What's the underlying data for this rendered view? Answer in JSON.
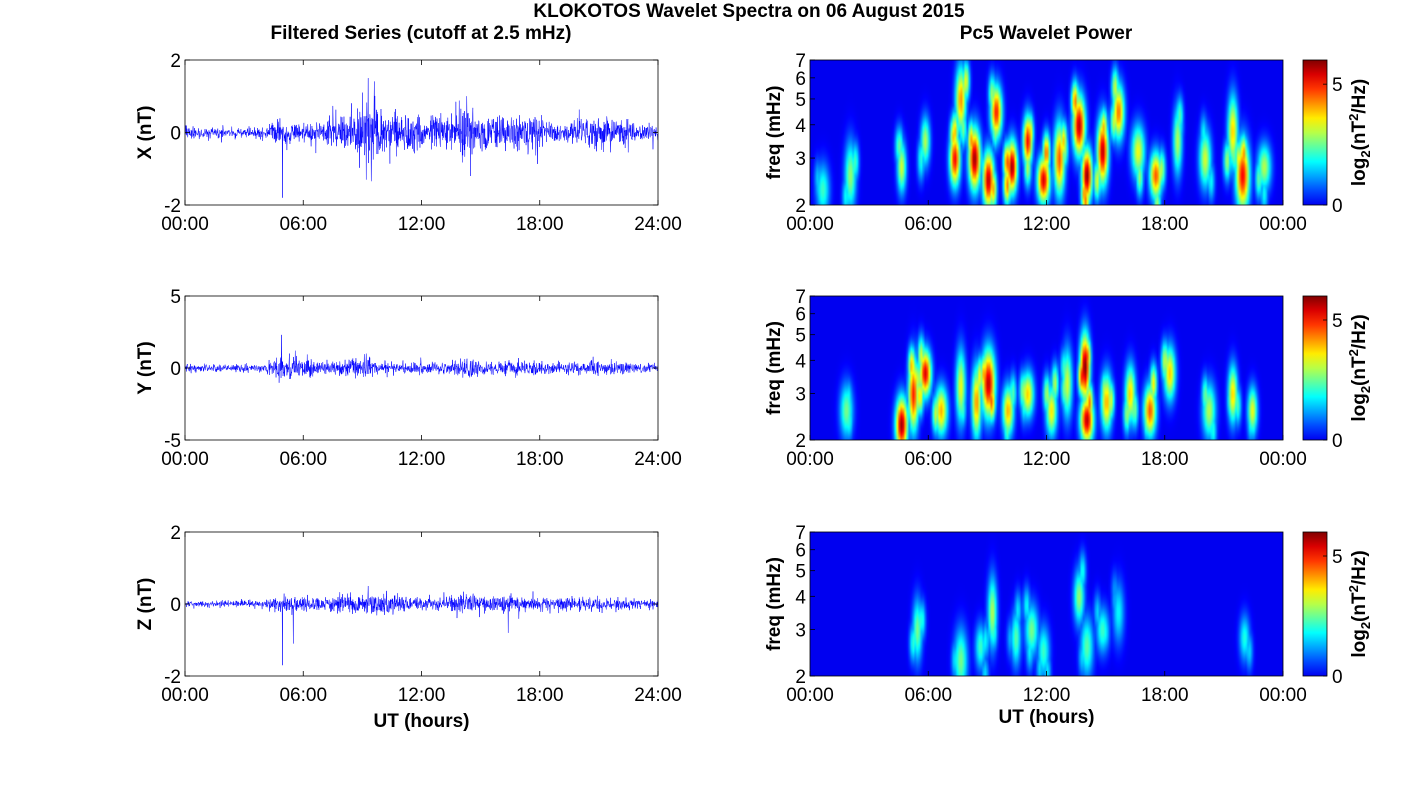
{
  "figure": {
    "title": "KLOKOTOS Wavelet Spectra on 06 August 2015",
    "left_column_title": "Filtered Series (cutoff at 2.5 mHz)",
    "right_column_title": "Pc5 Wavelet Power",
    "time_xlabel": "UT (hours)",
    "spectra_ylabel": "freq (mHz)",
    "colorbar_label": "log2(nT^2/Hz)"
  },
  "chart_data": [
    {
      "type": "line",
      "panel": "X-series",
      "ylabel": "X (nT)",
      "xlabel": "",
      "xticks": [
        "00:00",
        "06:00",
        "12:00",
        "18:00",
        "24:00"
      ],
      "yticks": [
        "-2",
        "0",
        "2"
      ],
      "xlim_hours": [
        0,
        24
      ],
      "ylim": [
        -2,
        2
      ],
      "color": "#0000ff",
      "envelope": {
        "x_hours": [
          0,
          2,
          4,
          4.8,
          5.5,
          7,
          8,
          9,
          9.5,
          10,
          11,
          12,
          13,
          14,
          15,
          16,
          17,
          18,
          19,
          20,
          21,
          22,
          23,
          24
        ],
        "amplitude_nT": [
          0.2,
          0.15,
          0.18,
          0.4,
          0.3,
          0.35,
          0.5,
          0.8,
          1.2,
          0.7,
          0.6,
          0.5,
          0.55,
          0.8,
          0.6,
          0.5,
          0.55,
          0.45,
          0.3,
          0.4,
          0.5,
          0.45,
          0.3,
          0.2
        ]
      },
      "notable_extremes": [
        {
          "x_hours": 4.95,
          "value_nT": -1.8
        },
        {
          "x_hours": 9.3,
          "value_nT": 1.5
        },
        {
          "x_hours": 9.2,
          "value_nT": -1.3
        },
        {
          "x_hours": 14.3,
          "value_nT": 1.0
        },
        {
          "x_hours": 14.5,
          "value_nT": -1.2
        }
      ]
    },
    {
      "type": "heatmap",
      "panel": "X-spectrum",
      "ylabel": "freq (mHz)",
      "xlabel": "",
      "xticks": [
        "00:00",
        "06:00",
        "12:00",
        "18:00",
        "00:00"
      ],
      "yticks": [
        "2",
        "3",
        "4",
        "5",
        "6",
        "7"
      ],
      "ylim_mHz": [
        2,
        7
      ],
      "yscale": "log",
      "colormap": "jet",
      "colorbar_ticks": [
        "0",
        "5"
      ],
      "clim": [
        0,
        6
      ],
      "blobs": [
        {
          "t_hours": 0.6,
          "f_mHz": 2.3,
          "power": 2.2
        },
        {
          "t_hours": 2.0,
          "f_mHz": 2.6,
          "power": 2.8
        },
        {
          "t_hours": 4.6,
          "f_mHz": 2.8,
          "power": 3.2
        },
        {
          "t_hours": 5.8,
          "f_mHz": 3.5,
          "power": 3.0
        },
        {
          "t_hours": 7.3,
          "f_mHz": 3.0,
          "power": 5.2
        },
        {
          "t_hours": 7.6,
          "f_mHz": 5.0,
          "power": 4.2
        },
        {
          "t_hours": 8.3,
          "f_mHz": 3.0,
          "power": 5.8
        },
        {
          "t_hours": 9.0,
          "f_mHz": 2.5,
          "power": 5.6
        },
        {
          "t_hours": 9.4,
          "f_mHz": 4.5,
          "power": 5.0
        },
        {
          "t_hours": 10.2,
          "f_mHz": 2.8,
          "power": 5.8
        },
        {
          "t_hours": 11.0,
          "f_mHz": 3.5,
          "power": 5.2
        },
        {
          "t_hours": 11.8,
          "f_mHz": 2.5,
          "power": 5.4
        },
        {
          "t_hours": 12.6,
          "f_mHz": 3.0,
          "power": 4.6
        },
        {
          "t_hours": 13.6,
          "f_mHz": 4.0,
          "power": 5.6
        },
        {
          "t_hours": 14.0,
          "f_mHz": 2.6,
          "power": 5.9
        },
        {
          "t_hours": 14.8,
          "f_mHz": 3.2,
          "power": 5.6
        },
        {
          "t_hours": 15.6,
          "f_mHz": 4.5,
          "power": 4.4
        },
        {
          "t_hours": 16.6,
          "f_mHz": 3.2,
          "power": 3.4
        },
        {
          "t_hours": 17.5,
          "f_mHz": 2.6,
          "power": 4.6
        },
        {
          "t_hours": 18.6,
          "f_mHz": 3.5,
          "power": 3.0
        },
        {
          "t_hours": 20.0,
          "f_mHz": 3.0,
          "power": 3.2
        },
        {
          "t_hours": 21.4,
          "f_mHz": 3.8,
          "power": 3.8
        },
        {
          "t_hours": 21.9,
          "f_mHz": 2.6,
          "power": 5.2
        },
        {
          "t_hours": 23.0,
          "f_mHz": 2.8,
          "power": 3.0
        }
      ]
    },
    {
      "type": "line",
      "panel": "Y-series",
      "ylabel": "Y (nT)",
      "xlabel": "",
      "xticks": [
        "00:00",
        "06:00",
        "12:00",
        "18:00",
        "24:00"
      ],
      "yticks": [
        "-5",
        "0",
        "5"
      ],
      "xlim_hours": [
        0,
        24
      ],
      "ylim": [
        -5,
        5
      ],
      "color": "#0000ff",
      "envelope": {
        "x_hours": [
          0,
          2,
          4,
          4.8,
          5.5,
          7,
          8,
          9,
          10,
          11,
          12,
          13,
          14,
          14.5,
          15,
          16,
          17,
          18,
          19,
          20,
          21,
          22,
          23,
          24
        ],
        "amplitude_nT": [
          0.3,
          0.25,
          0.3,
          1.2,
          0.8,
          0.5,
          0.5,
          0.8,
          0.5,
          0.4,
          0.4,
          0.4,
          0.6,
          0.9,
          0.5,
          0.5,
          0.6,
          0.5,
          0.4,
          0.5,
          0.5,
          0.5,
          0.4,
          0.3
        ]
      },
      "notable_extremes": [
        {
          "x_hours": 4.9,
          "value_nT": 2.3
        },
        {
          "x_hours": 5.6,
          "value_nT": 1.2
        },
        {
          "x_hours": 9.2,
          "value_nT": 1.0
        }
      ]
    },
    {
      "type": "heatmap",
      "panel": "Y-spectrum",
      "ylabel": "freq (mHz)",
      "xlabel": "",
      "xticks": [
        "00:00",
        "06:00",
        "12:00",
        "18:00",
        "00:00"
      ],
      "yticks": [
        "2",
        "3",
        "4",
        "5",
        "6",
        "7"
      ],
      "ylim_mHz": [
        2,
        7
      ],
      "yscale": "log",
      "colormap": "jet",
      "colorbar_ticks": [
        "0",
        "5"
      ],
      "clim": [
        0,
        6
      ],
      "blobs": [
        {
          "t_hours": 1.8,
          "f_mHz": 2.6,
          "power": 2.6
        },
        {
          "t_hours": 4.6,
          "f_mHz": 2.3,
          "power": 5.8
        },
        {
          "t_hours": 5.2,
          "f_mHz": 3.0,
          "power": 5.0
        },
        {
          "t_hours": 5.8,
          "f_mHz": 3.6,
          "power": 5.4
        },
        {
          "t_hours": 6.6,
          "f_mHz": 2.6,
          "power": 4.0
        },
        {
          "t_hours": 7.6,
          "f_mHz": 3.2,
          "power": 3.4
        },
        {
          "t_hours": 8.4,
          "f_mHz": 2.8,
          "power": 4.2
        },
        {
          "t_hours": 9.0,
          "f_mHz": 3.3,
          "power": 5.6
        },
        {
          "t_hours": 10.0,
          "f_mHz": 2.6,
          "power": 4.0
        },
        {
          "t_hours": 11.0,
          "f_mHz": 3.0,
          "power": 3.8
        },
        {
          "t_hours": 12.2,
          "f_mHz": 2.6,
          "power": 3.6
        },
        {
          "t_hours": 13.0,
          "f_mHz": 3.3,
          "power": 3.2
        },
        {
          "t_hours": 13.9,
          "f_mHz": 3.8,
          "power": 6.0
        },
        {
          "t_hours": 14.0,
          "f_mHz": 2.4,
          "power": 5.6
        },
        {
          "t_hours": 15.0,
          "f_mHz": 2.8,
          "power": 4.0
        },
        {
          "t_hours": 16.2,
          "f_mHz": 3.0,
          "power": 3.8
        },
        {
          "t_hours": 17.2,
          "f_mHz": 2.6,
          "power": 4.6
        },
        {
          "t_hours": 18.2,
          "f_mHz": 3.6,
          "power": 3.8
        },
        {
          "t_hours": 20.2,
          "f_mHz": 2.6,
          "power": 3.0
        },
        {
          "t_hours": 21.4,
          "f_mHz": 3.0,
          "power": 3.8
        },
        {
          "t_hours": 22.4,
          "f_mHz": 2.6,
          "power": 3.4
        }
      ]
    },
    {
      "type": "line",
      "panel": "Z-series",
      "ylabel": "Z (nT)",
      "xlabel": "UT (hours)",
      "xticks": [
        "00:00",
        "06:00",
        "12:00",
        "18:00",
        "24:00"
      ],
      "yticks": [
        "-2",
        "0",
        "2"
      ],
      "xlim_hours": [
        0,
        24
      ],
      "ylim": [
        -2,
        2
      ],
      "color": "#0000ff",
      "envelope": {
        "x_hours": [
          0,
          2,
          4,
          4.8,
          5.5,
          7,
          8,
          9,
          10,
          11,
          12,
          13,
          14,
          15,
          16,
          17,
          18,
          19,
          20,
          21,
          22,
          23,
          24
        ],
        "amplitude_nT": [
          0.1,
          0.1,
          0.12,
          0.3,
          0.25,
          0.2,
          0.25,
          0.3,
          0.3,
          0.25,
          0.2,
          0.2,
          0.3,
          0.25,
          0.25,
          0.25,
          0.2,
          0.2,
          0.2,
          0.2,
          0.2,
          0.15,
          0.12
        ]
      },
      "notable_extremes": [
        {
          "x_hours": 4.95,
          "value_nT": -1.7
        },
        {
          "x_hours": 5.5,
          "value_nT": -1.1
        },
        {
          "x_hours": 16.4,
          "value_nT": -0.8
        },
        {
          "x_hours": 9.3,
          "value_nT": 0.5
        }
      ]
    },
    {
      "type": "heatmap",
      "panel": "Z-spectrum",
      "ylabel": "freq (mHz)",
      "xlabel": "UT (hours)",
      "xticks": [
        "00:00",
        "06:00",
        "12:00",
        "18:00",
        "00:00"
      ],
      "yticks": [
        "2",
        "3",
        "4",
        "5",
        "6",
        "7"
      ],
      "ylim_mHz": [
        2,
        7
      ],
      "yscale": "log",
      "colormap": "jet",
      "colorbar_ticks": [
        "0",
        "5"
      ],
      "clim": [
        0,
        6
      ],
      "blobs": [
        {
          "t_hours": 5.4,
          "f_mHz": 3.0,
          "power": 2.6
        },
        {
          "t_hours": 7.6,
          "f_mHz": 2.3,
          "power": 2.6
        },
        {
          "t_hours": 8.6,
          "f_mHz": 2.6,
          "power": 2.2
        },
        {
          "t_hours": 9.2,
          "f_mHz": 3.5,
          "power": 3.0
        },
        {
          "t_hours": 10.4,
          "f_mHz": 2.8,
          "power": 2.4
        },
        {
          "t_hours": 11.2,
          "f_mHz": 3.0,
          "power": 2.6
        },
        {
          "t_hours": 11.8,
          "f_mHz": 2.5,
          "power": 2.2
        },
        {
          "t_hours": 13.6,
          "f_mHz": 4.0,
          "power": 2.8
        },
        {
          "t_hours": 14.0,
          "f_mHz": 2.6,
          "power": 2.4
        },
        {
          "t_hours": 14.8,
          "f_mHz": 3.0,
          "power": 2.2
        },
        {
          "t_hours": 15.6,
          "f_mHz": 3.5,
          "power": 1.8
        },
        {
          "t_hours": 22.0,
          "f_mHz": 2.8,
          "power": 2.0
        }
      ]
    }
  ]
}
